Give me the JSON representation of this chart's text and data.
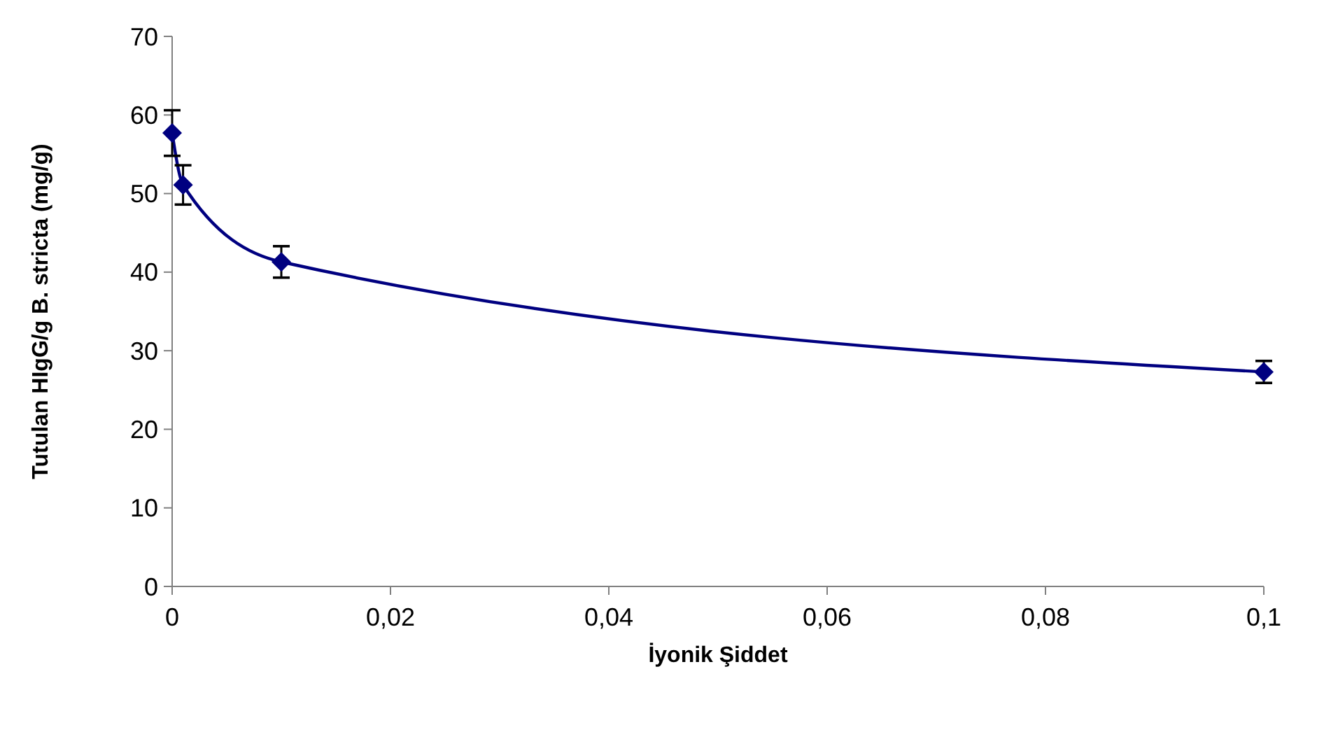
{
  "chart_data": {
    "type": "line",
    "xlabel": "İyonik Şiddet",
    "ylabel": "Tutulan HIgG/g B. stricta (mg/g)",
    "x": [
      0,
      0.001,
      0.01,
      0.1
    ],
    "series": [
      {
        "color": "#000080",
        "values": [
          57.7,
          51.1,
          41.3,
          27.3
        ],
        "errors": [
          2.9,
          2.5,
          2,
          1.4
        ]
      }
    ],
    "xlim": [
      0,
      0.1
    ],
    "xticks": [
      {
        "value": 0,
        "label": "0"
      },
      {
        "value": 0.02,
        "label": "0,02"
      },
      {
        "value": 0.04,
        "label": "0,04"
      },
      {
        "value": 0.06,
        "label": "0,06"
      },
      {
        "value": 0.08,
        "label": "0,08"
      },
      {
        "value": 0.1,
        "label": "0,1"
      }
    ],
    "ylim": [
      0,
      70
    ],
    "yticks": [
      0,
      10,
      20,
      30,
      40,
      50,
      60,
      70
    ],
    "marker": "diamond",
    "line_style": "solid",
    "grid": false
  }
}
